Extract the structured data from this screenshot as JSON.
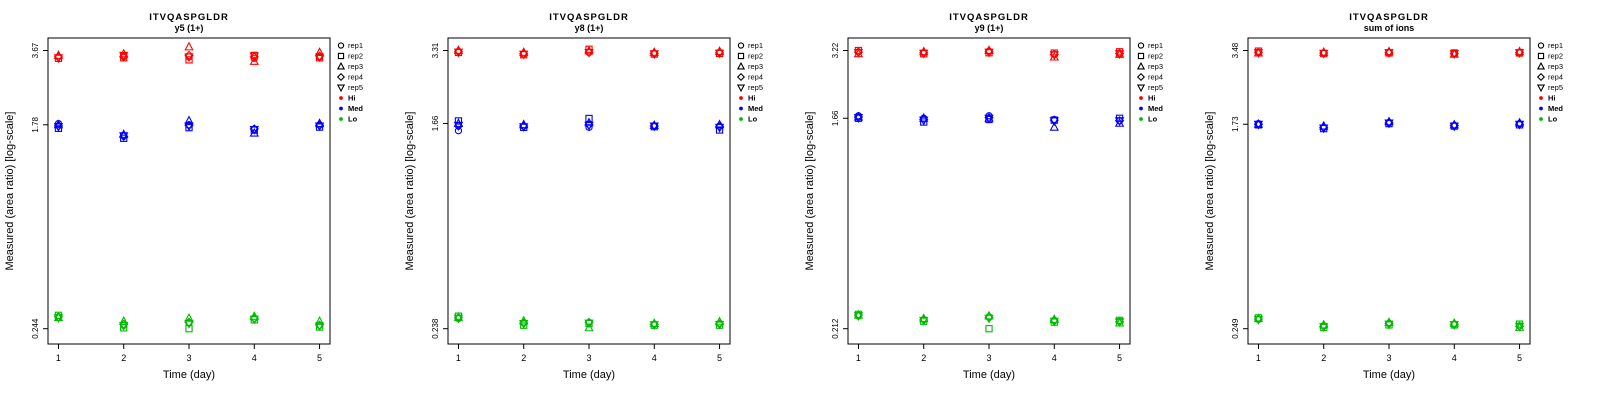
{
  "figure": {
    "xlabel": "Time (day)",
    "ylabel": "Measured (area ratio) [log-scale]"
  },
  "legend": {
    "reps": [
      {
        "label": "rep1",
        "symbol": "circle"
      },
      {
        "label": "rep2",
        "symbol": "square"
      },
      {
        "label": "rep3",
        "symbol": "triangle-up"
      },
      {
        "label": "rep4",
        "symbol": "diamond"
      },
      {
        "label": "rep5",
        "symbol": "triangle-down"
      }
    ],
    "groups": [
      {
        "label": "Hi",
        "color": "#ff0000"
      },
      {
        "label": "Med",
        "color": "#0000ff"
      },
      {
        "label": "Lo",
        "color": "#00bb00"
      }
    ]
  },
  "colors": {
    "hi": "#ff0000",
    "med": "#0000ff",
    "lo": "#00bb00",
    "axis": "#000000"
  },
  "chart_data": [
    {
      "type": "scatter",
      "title": "ITVQASPGLDR",
      "subtitle": "y5 (1+)",
      "xlabel": "Time (day)",
      "ylabel": "Measured (area ratio) [log-scale]",
      "x_ticks": [
        1,
        2,
        3,
        4,
        5
      ],
      "y_scale": "log",
      "y_ticks": [
        {
          "label": "0.244",
          "value": 0.244
        },
        {
          "label": "1.78",
          "value": 1.78
        },
        {
          "label": "3.67",
          "value": 3.67
        }
      ],
      "series": [
        {
          "name": "Hi",
          "color": "#ff0000",
          "values_by_day": [
            [
              3.45,
              3.4,
              3.5,
              3.45,
              3.42
            ],
            [
              3.48,
              3.42,
              3.55,
              3.45,
              3.5
            ],
            [
              3.45,
              3.35,
              3.8,
              3.5,
              3.45
            ],
            [
              3.4,
              3.5,
              3.3,
              3.45,
              3.48
            ],
            [
              3.45,
              3.42,
              3.6,
              3.48,
              3.45
            ]
          ]
        },
        {
          "name": "Med",
          "color": "#0000ff",
          "values_by_day": [
            [
              1.8,
              1.72,
              1.78,
              1.76,
              1.75
            ],
            [
              1.6,
              1.56,
              1.62,
              1.59,
              1.6
            ],
            [
              1.78,
              1.73,
              1.85,
              1.77,
              1.76
            ],
            [
              1.7,
              1.69,
              1.64,
              1.71,
              1.7
            ],
            [
              1.78,
              1.74,
              1.8,
              1.77,
              1.76
            ]
          ]
        },
        {
          "name": "Lo",
          "color": "#00bb00",
          "values_by_day": [
            [
              0.272,
              0.278,
              0.272,
              0.274,
              0.272
            ],
            [
              0.252,
              0.246,
              0.262,
              0.255,
              0.252
            ],
            [
              0.258,
              0.244,
              0.27,
              0.26,
              0.257
            ],
            [
              0.27,
              0.266,
              0.275,
              0.27,
              0.268
            ],
            [
              0.252,
              0.248,
              0.262,
              0.253,
              0.251
            ]
          ]
        }
      ]
    },
    {
      "type": "scatter",
      "title": "ITVQASPGLDR",
      "subtitle": "y8 (1+)",
      "xlabel": "Time (day)",
      "ylabel": "Measured (area ratio) [log-scale]",
      "x_ticks": [
        1,
        2,
        3,
        4,
        5
      ],
      "y_scale": "log",
      "y_ticks": [
        {
          "label": "0.238",
          "value": 0.238
        },
        {
          "label": "1.66",
          "value": 1.66
        },
        {
          "label": "3.31",
          "value": 3.31
        }
      ],
      "series": [
        {
          "name": "Hi",
          "color": "#ff0000",
          "values_by_day": [
            [
              3.28,
              3.25,
              3.31,
              3.27,
              3.26
            ],
            [
              3.2,
              3.18,
              3.25,
              3.21,
              3.2
            ],
            [
              3.25,
              3.35,
              3.3,
              3.26,
              3.25
            ],
            [
              3.22,
              3.2,
              3.25,
              3.22,
              3.21
            ],
            [
              3.25,
              3.22,
              3.28,
              3.24,
              3.23
            ]
          ]
        },
        {
          "name": "Med",
          "color": "#0000ff",
          "values_by_day": [
            [
              1.55,
              1.7,
              1.66,
              1.62,
              1.63
            ],
            [
              1.62,
              1.6,
              1.64,
              1.62,
              1.61
            ],
            [
              1.6,
              1.74,
              1.67,
              1.64,
              1.63
            ],
            [
              1.62,
              1.61,
              1.63,
              1.62,
              1.62
            ],
            [
              1.62,
              1.56,
              1.64,
              1.61,
              1.6
            ]
          ]
        },
        {
          "name": "Lo",
          "color": "#00bb00",
          "values_by_day": [
            [
              0.262,
              0.268,
              0.265,
              0.264,
              0.263
            ],
            [
              0.252,
              0.246,
              0.256,
              0.251,
              0.25
            ],
            [
              0.252,
              0.25,
              0.24,
              0.253,
              0.251
            ],
            [
              0.248,
              0.246,
              0.25,
              0.248,
              0.247
            ],
            [
              0.25,
              0.246,
              0.254,
              0.249,
              0.248
            ]
          ]
        }
      ]
    },
    {
      "type": "scatter",
      "title": "ITVQASPGLDR",
      "subtitle": "y9 (1+)",
      "xlabel": "Time (day)",
      "ylabel": "Measured (area ratio) [log-scale]",
      "x_ticks": [
        1,
        2,
        3,
        4,
        5
      ],
      "y_scale": "log",
      "y_ticks": [
        {
          "label": "0.212",
          "value": 0.212
        },
        {
          "label": "1.66",
          "value": 1.66
        },
        {
          "label": "3.22",
          "value": 3.22
        }
      ],
      "series": [
        {
          "name": "Hi",
          "color": "#ff0000",
          "values_by_day": [
            [
              3.18,
              3.22,
              3.12,
              3.17,
              3.16
            ],
            [
              3.15,
              3.12,
              3.18,
              3.15,
              3.14
            ],
            [
              3.2,
              3.15,
              3.22,
              3.18,
              3.17
            ],
            [
              3.1,
              3.14,
              3.02,
              3.1,
              3.09
            ],
            [
              3.12,
              3.18,
              3.1,
              3.13,
              3.12
            ]
          ]
        },
        {
          "name": "Med",
          "color": "#0000ff",
          "values_by_day": [
            [
              1.7,
              1.66,
              1.68,
              1.68,
              1.67
            ],
            [
              1.66,
              1.6,
              1.66,
              1.64,
              1.63
            ],
            [
              1.7,
              1.64,
              1.66,
              1.67,
              1.66
            ],
            [
              1.64,
              1.63,
              1.52,
              1.63,
              1.62
            ],
            [
              1.62,
              1.66,
              1.58,
              1.62,
              1.62
            ]
          ]
        },
        {
          "name": "Lo",
          "color": "#00bb00",
          "values_by_day": [
            [
              0.24,
              0.244,
              0.242,
              0.242,
              0.241
            ],
            [
              0.232,
              0.228,
              0.234,
              0.231,
              0.23
            ],
            [
              0.238,
              0.212,
              0.24,
              0.236,
              0.235
            ],
            [
              0.23,
              0.226,
              0.232,
              0.229,
              0.228
            ],
            [
              0.228,
              0.23,
              0.224,
              0.227,
              0.227
            ]
          ]
        }
      ]
    },
    {
      "type": "scatter",
      "title": "ITVQASPGLDR",
      "subtitle": "sum of ions",
      "xlabel": "Time (day)",
      "ylabel": "Measured (area ratio) [log-scale]",
      "x_ticks": [
        1,
        2,
        3,
        4,
        5
      ],
      "y_scale": "log",
      "y_ticks": [
        {
          "label": "0.249",
          "value": 0.249
        },
        {
          "label": "1.73",
          "value": 1.73
        },
        {
          "label": "3.48",
          "value": 3.48
        }
      ],
      "series": [
        {
          "name": "Hi",
          "color": "#ff0000",
          "values_by_day": [
            [
              3.42,
              3.46,
              3.4,
              3.42,
              3.41
            ],
            [
              3.4,
              3.38,
              3.42,
              3.4,
              3.39
            ],
            [
              3.42,
              3.4,
              3.44,
              3.41,
              3.41
            ],
            [
              3.38,
              3.4,
              3.36,
              3.38,
              3.38
            ],
            [
              3.42,
              3.4,
              3.44,
              3.41,
              3.41
            ]
          ]
        },
        {
          "name": "Med",
          "color": "#0000ff",
          "values_by_day": [
            [
              1.74,
              1.72,
              1.73,
              1.73,
              1.73
            ],
            [
              1.68,
              1.66,
              1.7,
              1.68,
              1.67
            ],
            [
              1.76,
              1.74,
              1.77,
              1.75,
              1.75
            ],
            [
              1.71,
              1.7,
              1.72,
              1.71,
              1.7
            ],
            [
              1.74,
              1.72,
              1.75,
              1.73,
              1.73
            ]
          ]
        },
        {
          "name": "Lo",
          "color": "#00bb00",
          "values_by_day": [
            [
              0.272,
              0.276,
              0.274,
              0.273,
              0.272
            ],
            [
              0.256,
              0.252,
              0.258,
              0.255,
              0.254
            ],
            [
              0.262,
              0.258,
              0.264,
              0.261,
              0.26
            ],
            [
              0.26,
              0.258,
              0.262,
              0.259,
              0.259
            ],
            [
              0.256,
              0.26,
              0.252,
              0.255,
              0.255
            ]
          ]
        }
      ]
    }
  ]
}
